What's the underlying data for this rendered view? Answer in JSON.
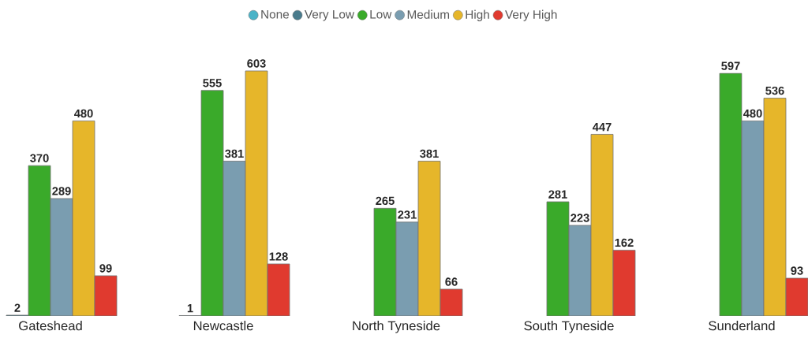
{
  "chart_data": {
    "type": "bar",
    "categories": [
      "Gateshead",
      "Newcastle",
      "North Tyneside",
      "South Tyneside",
      "Sunderland"
    ],
    "series": [
      {
        "name": "None",
        "color": "#4bb3c7",
        "values": [
          null,
          null,
          null,
          null,
          null
        ]
      },
      {
        "name": "Very Low",
        "color": "#4a7b8c",
        "values": [
          2,
          1,
          null,
          null,
          null
        ]
      },
      {
        "name": "Low",
        "color": "#3aaa2a",
        "values": [
          370,
          555,
          265,
          281,
          597
        ]
      },
      {
        "name": "Medium",
        "color": "#7a9db0",
        "values": [
          289,
          381,
          231,
          223,
          480
        ]
      },
      {
        "name": "High",
        "color": "#e6b62a",
        "values": [
          480,
          603,
          381,
          447,
          536
        ]
      },
      {
        "name": "Very High",
        "color": "#e03a2f",
        "values": [
          99,
          128,
          66,
          162,
          93
        ]
      }
    ],
    "data_labels": true,
    "legend": "top"
  }
}
